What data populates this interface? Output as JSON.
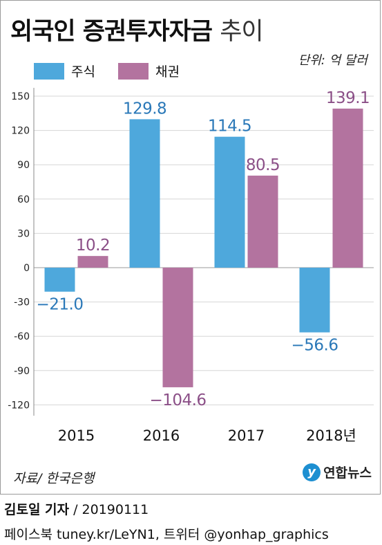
{
  "title_bold": "외국인 증권투자자금",
  "title_light": "추이",
  "unit": "단위: 억 달러",
  "legend": [
    {
      "label": "주식",
      "color": "#4ea8dc"
    },
    {
      "label": "채권",
      "color": "#b3739f"
    }
  ],
  "source": "자료/ 한국은행",
  "logo": {
    "mark": "y",
    "text": "연합뉴스"
  },
  "credit": {
    "name": "김토일 기자",
    "date": "/ 20190111"
  },
  "credit2": "페이스북 tuney.kr/LeYN1, 트위터 @yonhap_graphics",
  "chart_data": {
    "type": "bar",
    "categories": [
      "2015",
      "2016",
      "2017",
      "2018년"
    ],
    "series": [
      {
        "name": "주식",
        "values": [
          -21.0,
          129.8,
          114.5,
          -56.6
        ],
        "labels": [
          "−21.0",
          "129.8",
          "114.5",
          "−56.6"
        ],
        "color": "#4ea8dc",
        "label_color": "#2a78b8"
      },
      {
        "name": "채권",
        "values": [
          10.2,
          -104.6,
          80.5,
          139.1
        ],
        "labels": [
          "10.2",
          "−104.6",
          "80.5",
          "139.1"
        ],
        "color": "#b3739f",
        "label_color": "#8b4f87"
      }
    ],
    "yticks": [
      150,
      120,
      90,
      60,
      30,
      0,
      -30,
      -60,
      -90,
      -120
    ],
    "ytick_labels": [
      "150",
      "120",
      "90",
      "60",
      "30",
      "0",
      "-30",
      "-60",
      "-90",
      "-120"
    ],
    "ylim": [
      -120,
      150
    ],
    "xlabel": "",
    "ylabel": "",
    "grid": true
  }
}
